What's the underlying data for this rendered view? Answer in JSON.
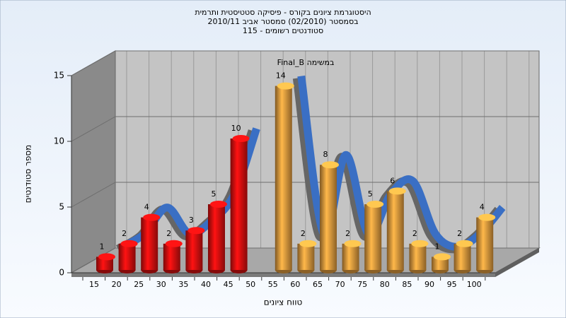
{
  "chart_data": {
    "type": "bar3d",
    "title": "היסטוגרמת ציונים בקורס - פיסיקה סטטיסטית ותרמית",
    "subtitle": "בסמסטר (02/2010) סמסטר אביב 2010/11",
    "subtitle2": "סטודנטים רשומים - 115",
    "annotation": "Final_B במשימה",
    "x_label": "טווח ציונים",
    "y_label": "מספר סטודנטים",
    "categories": [
      "15",
      "20",
      "25",
      "30",
      "35",
      "40",
      "45",
      "50",
      "55",
      "60",
      "65",
      "70",
      "75",
      "80",
      "85",
      "90",
      "95",
      "100"
    ],
    "values": [
      1,
      2,
      4,
      2,
      3,
      5,
      10,
      null,
      14,
      2,
      8,
      2,
      5,
      6,
      2,
      1,
      2,
      4
    ],
    "colors": [
      "#e01010",
      "#e01010",
      "#e01010",
      "#e01010",
      "#e01010",
      "#e01010",
      "#e01010",
      "#e01010",
      "#e8a040",
      "#e8a040",
      "#e8a040",
      "#e8a040",
      "#e8a040",
      "#e8a040",
      "#e8a040",
      "#e8a040",
      "#e8a040",
      "#e8a040"
    ],
    "line_color": "#3a6fc4",
    "ylim": [
      0,
      15
    ],
    "yticks": [
      0,
      5,
      10,
      15
    ],
    "grid": true
  }
}
